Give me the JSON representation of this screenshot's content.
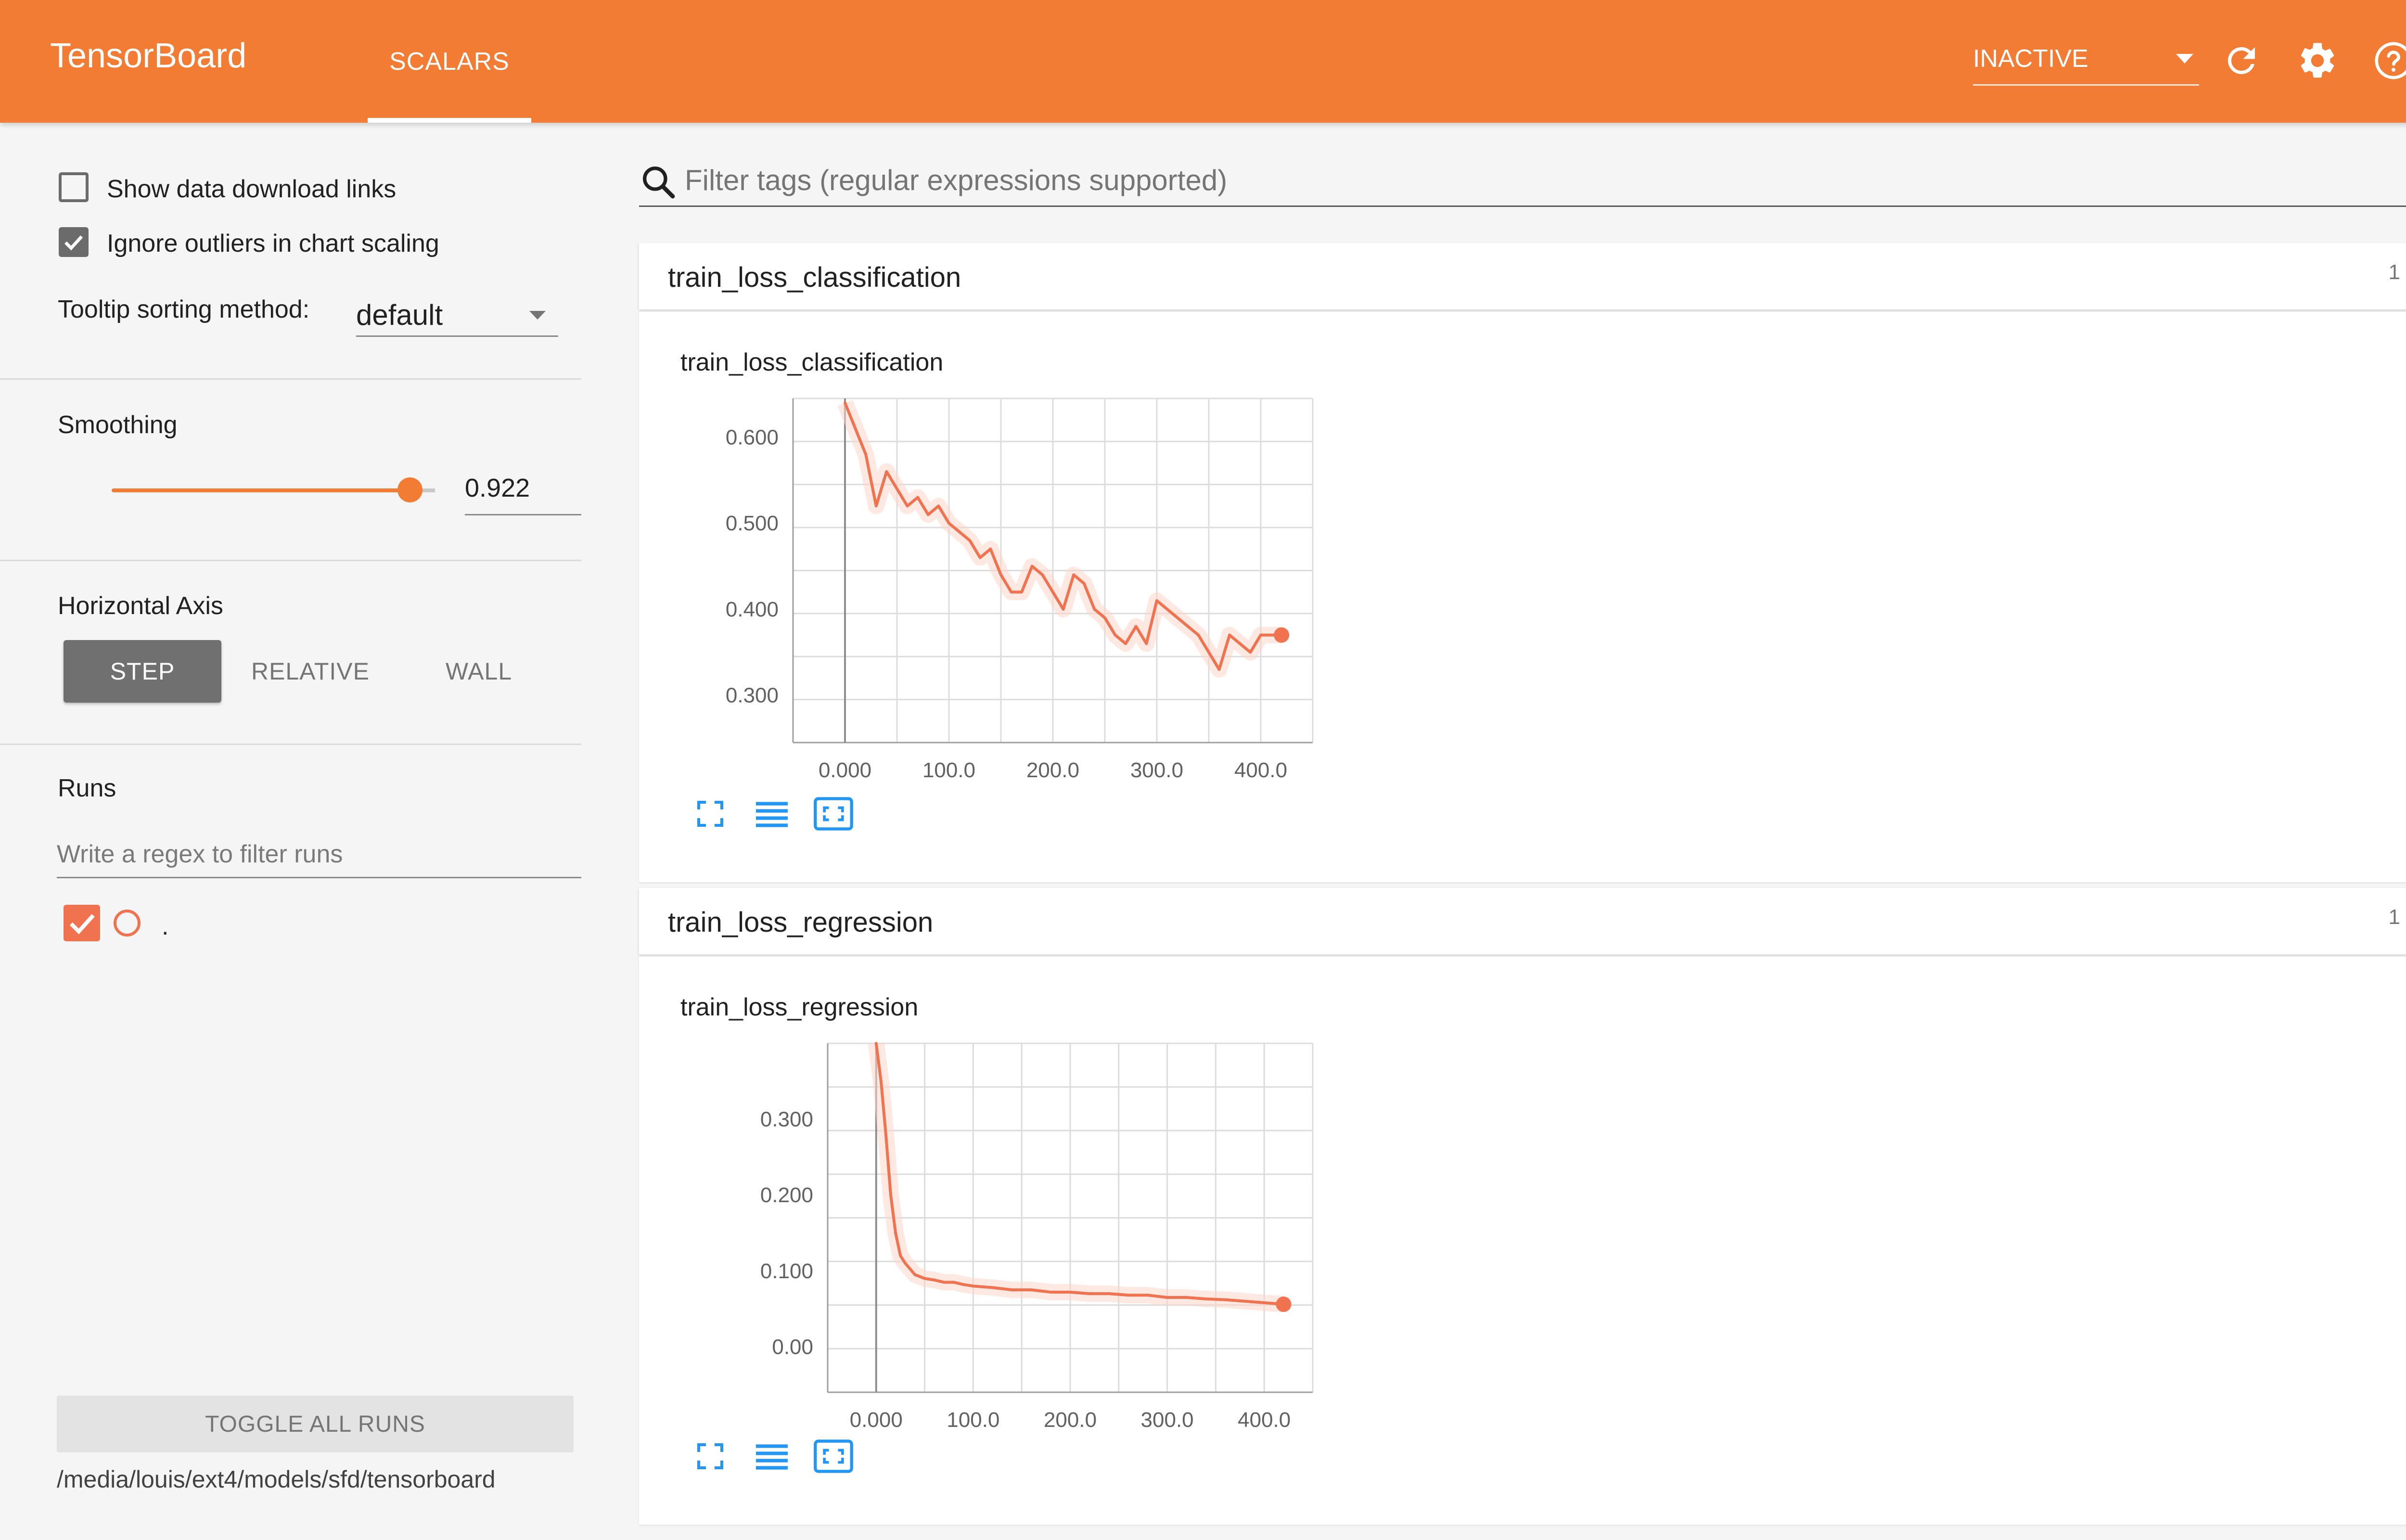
{
  "header": {
    "brand": "TensorBoard",
    "tab": "SCALARS",
    "status": "INACTIVE"
  },
  "sidebar": {
    "show_download_links": "Show data download links",
    "ignore_outliers": "Ignore outliers in chart scaling",
    "tooltip_label": "Tooltip sorting method:",
    "tooltip_value": "default",
    "smoothing_label": "Smoothing",
    "smoothing_value": "0.922",
    "smoothing_fraction": 0.922,
    "axis_label": "Horizontal Axis",
    "axis_options": [
      "STEP",
      "RELATIVE",
      "WALL"
    ],
    "axis_selected": "STEP",
    "runs_label": "Runs",
    "runs_filter_placeholder": "Write a regex to filter runs",
    "run_name": ".",
    "toggle_all": "TOGGLE ALL RUNS",
    "logdir": "/media/louis/ext4/models/sfd/tensorboard"
  },
  "main": {
    "filter_placeholder": "Filter tags (regular expressions supported)",
    "cards": [
      {
        "title": "train_loss_classification",
        "count": "1",
        "chart_title": "train_loss_classification"
      },
      {
        "title": "train_loss_regression",
        "count": "1",
        "chart_title": "train_loss_regression"
      }
    ]
  },
  "colors": {
    "header": "#f27c33",
    "series": "#f0724f",
    "series_raw": "#fbd5cb"
  },
  "icons": [
    "search-icon",
    "refresh-icon",
    "settings-icon",
    "help-icon",
    "fullscreen-icon",
    "list-icon",
    "fit-domain-icon",
    "chevron-down-icon",
    "checkmark-icon"
  ],
  "chart_data": [
    {
      "type": "line",
      "title": "train_loss_classification",
      "x_ticks": [
        "0.000",
        "100.0",
        "200.0",
        "300.0",
        "400.0"
      ],
      "y_ticks": [
        "0.300",
        "0.400",
        "0.500",
        "0.600"
      ],
      "xlim": [
        -50,
        450
      ],
      "ylim": [
        0.245,
        0.645
      ],
      "series": [
        {
          "x": [
            0,
            10,
            20,
            30,
            40,
            50,
            60,
            70,
            80,
            90,
            100,
            110,
            120,
            130,
            140,
            150,
            160,
            170,
            180,
            190,
            200,
            210,
            220,
            230,
            240,
            250,
            260,
            270,
            280,
            290,
            300,
            310,
            320,
            330,
            340,
            350,
            360,
            370,
            380,
            390,
            400,
            410,
            420
          ],
          "y": [
            0.64,
            0.61,
            0.58,
            0.52,
            0.56,
            0.54,
            0.52,
            0.53,
            0.51,
            0.52,
            0.5,
            0.49,
            0.48,
            0.46,
            0.47,
            0.44,
            0.42,
            0.42,
            0.45,
            0.44,
            0.42,
            0.4,
            0.44,
            0.43,
            0.4,
            0.39,
            0.37,
            0.36,
            0.38,
            0.36,
            0.41,
            0.4,
            0.39,
            0.38,
            0.37,
            0.35,
            0.33,
            0.37,
            0.36,
            0.35,
            0.37,
            0.37,
            0.37
          ]
        }
      ]
    },
    {
      "type": "line",
      "title": "train_loss_regression",
      "x_ticks": [
        "0.000",
        "100.0",
        "200.0",
        "300.0",
        "400.0"
      ],
      "y_ticks": [
        "0.00",
        "0.100",
        "0.200",
        "0.300"
      ],
      "xlim": [
        -50,
        450
      ],
      "ylim": [
        -0.06,
        0.4
      ],
      "series": [
        {
          "x": [
            0,
            5,
            10,
            15,
            20,
            25,
            30,
            40,
            50,
            60,
            70,
            80,
            90,
            100,
            120,
            140,
            160,
            180,
            200,
            220,
            240,
            260,
            280,
            300,
            320,
            340,
            360,
            380,
            400,
            420
          ],
          "y": [
            0.4,
            0.35,
            0.28,
            0.2,
            0.15,
            0.12,
            0.11,
            0.095,
            0.09,
            0.088,
            0.085,
            0.085,
            0.082,
            0.08,
            0.078,
            0.075,
            0.075,
            0.072,
            0.072,
            0.07,
            0.07,
            0.068,
            0.068,
            0.065,
            0.065,
            0.063,
            0.062,
            0.06,
            0.058,
            0.056
          ]
        }
      ]
    }
  ]
}
